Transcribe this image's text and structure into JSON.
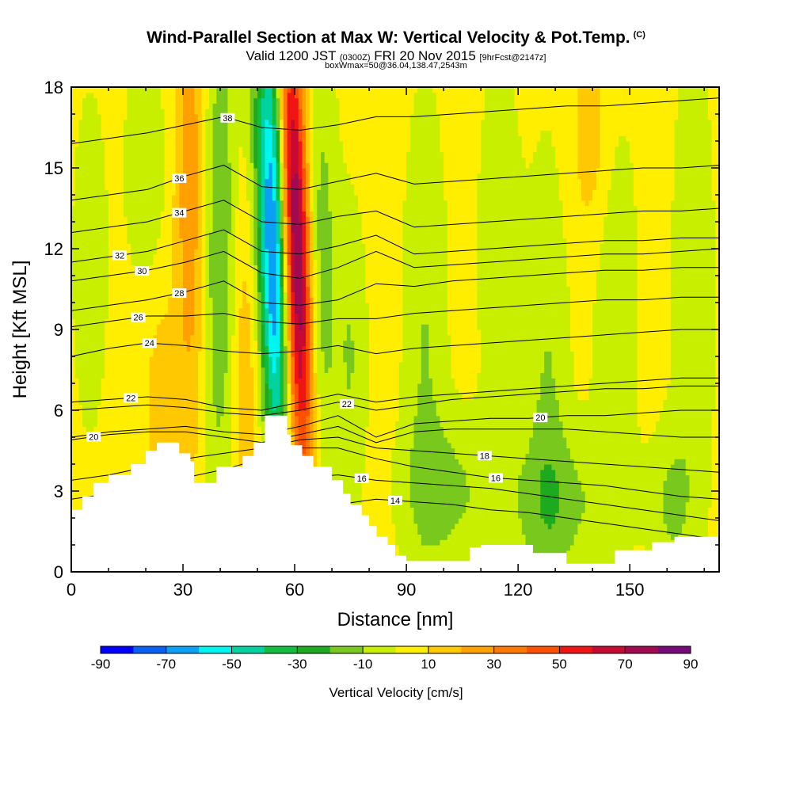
{
  "header": {
    "title": "Wind-Parallel Section at Max W: Vertical Velocity & Pot.Temp.",
    "copyright": "(C)",
    "valid_prefix": "Valid 1200 JST",
    "valid_utc": "(0300Z)",
    "valid_date": "FRI 20 Nov 2015",
    "forecast": "[9hrFcst@2147z]",
    "box_info": "boxWmax=50@36.04,138.47,2543m"
  },
  "chart_data": {
    "type": "heatmap",
    "xlabel": "Distance [nm]",
    "ylabel": "Height [Kft MSL]",
    "xlim": [
      0,
      174
    ],
    "ylim": [
      0,
      18
    ],
    "x_ticks": [
      "0",
      "30",
      "60",
      "90",
      "120",
      "150"
    ],
    "y_ticks": [
      "0",
      "3",
      "6",
      "9",
      "12",
      "15",
      "18"
    ],
    "colorbar": {
      "title": "Vertical Velocity [cm/s]",
      "tick_labels": [
        "-90",
        "-70",
        "-50",
        "-30",
        "-10",
        "10",
        "30",
        "50",
        "70",
        "90"
      ],
      "levels": [
        -90,
        -80,
        -70,
        -60,
        -50,
        -40,
        -30,
        -20,
        -10,
        0,
        10,
        20,
        30,
        40,
        50,
        60,
        70,
        80,
        90
      ],
      "colors": [
        "#0000ff",
        "#0a5ff5",
        "#0aa0f5",
        "#00f5f0",
        "#00d2a0",
        "#0fbe3c",
        "#1eaa1e",
        "#78c81e",
        "#c8ee00",
        "#ffee00",
        "#ffc800",
        "#ffa000",
        "#ff7800",
        "#ff5000",
        "#f01414",
        "#c80a32",
        "#a00a50",
        "#780a78"
      ]
    },
    "terrain": [
      [
        0,
        2.3
      ],
      [
        3,
        2.3
      ],
      [
        3,
        2.8
      ],
      [
        6,
        2.8
      ],
      [
        6,
        3.3
      ],
      [
        10,
        3.3
      ],
      [
        10,
        3.6
      ],
      [
        16,
        3.6
      ],
      [
        16,
        4.0
      ],
      [
        20,
        4.0
      ],
      [
        20,
        4.5
      ],
      [
        23,
        4.5
      ],
      [
        23,
        4.8
      ],
      [
        29,
        4.8
      ],
      [
        29,
        4.4
      ],
      [
        32,
        4.4
      ],
      [
        32,
        4.1
      ],
      [
        33,
        4.1
      ],
      [
        33,
        3.3
      ],
      [
        39,
        3.3
      ],
      [
        39,
        3.9
      ],
      [
        46,
        3.9
      ],
      [
        46,
        4.3
      ],
      [
        49,
        4.3
      ],
      [
        49,
        4.8
      ],
      [
        52,
        4.8
      ],
      [
        52,
        5.8
      ],
      [
        58,
        5.8
      ],
      [
        58,
        5.1
      ],
      [
        59,
        5.1
      ],
      [
        59,
        4.7
      ],
      [
        62,
        4.7
      ],
      [
        62,
        4.3
      ],
      [
        65,
        4.3
      ],
      [
        65,
        3.9
      ],
      [
        70,
        3.9
      ],
      [
        70,
        3.4
      ],
      [
        73,
        3.4
      ],
      [
        73,
        2.9
      ],
      [
        75,
        2.9
      ],
      [
        75,
        2.5
      ],
      [
        78,
        2.5
      ],
      [
        78,
        2.1
      ],
      [
        80,
        2.1
      ],
      [
        80,
        1.7
      ],
      [
        82,
        1.7
      ],
      [
        82,
        1.3
      ],
      [
        85,
        1.3
      ],
      [
        85,
        1.0
      ],
      [
        87,
        1.0
      ],
      [
        87,
        0.6
      ],
      [
        90,
        0.6
      ],
      [
        90,
        0.4
      ],
      [
        107,
        0.4
      ],
      [
        107,
        0.9
      ],
      [
        110,
        0.9
      ],
      [
        110,
        1.0
      ],
      [
        124,
        1.0
      ],
      [
        124,
        0.7
      ],
      [
        133,
        0.7
      ],
      [
        133,
        0.3
      ],
      [
        146,
        0.3
      ],
      [
        146,
        0.8
      ],
      [
        156,
        0.8
      ],
      [
        156,
        1.1
      ],
      [
        162,
        1.1
      ],
      [
        162,
        1.3
      ],
      [
        174,
        1.3
      ]
    ],
    "isentropes": [
      {
        "label": "14",
        "label_x": 87,
        "y": [
          0.8,
          1.0,
          1.3,
          1.6,
          1.9,
          2.2,
          2.3,
          2.5,
          2.7,
          2.6,
          2.5,
          2.3,
          2.2,
          2.0,
          1.8,
          1.6,
          1.4,
          1.2
        ]
      },
      {
        "label": "16",
        "label_x": 78,
        "y": [
          1.6,
          1.8,
          2.2,
          2.6,
          2.9,
          3.2,
          3.5,
          3.6,
          3.4,
          3.3,
          3.2,
          3.1,
          2.9,
          2.7,
          2.5,
          2.3,
          2.1,
          1.9
        ]
      },
      {
        "label": "16",
        "label_x": 114,
        "y": [
          2.7,
          2.9,
          3.2,
          3.5,
          3.8,
          4.2,
          4.6,
          4.6,
          4.2,
          3.9,
          3.7,
          3.5,
          3.4,
          3.3,
          3.2,
          3.0,
          2.8,
          2.7
        ]
      },
      {
        "label": "18",
        "label_x": 111,
        "y": [
          3.4,
          3.6,
          3.9,
          4.2,
          4.4,
          4.6,
          4.9,
          5.0,
          4.6,
          4.5,
          4.4,
          4.3,
          4.2,
          4.1,
          4.0,
          3.9,
          3.8,
          3.7
        ]
      },
      {
        "label": "20",
        "label_x": 6,
        "y": [
          4.9,
          5.1,
          5.2,
          5.2,
          5.0,
          4.8,
          5.1,
          5.4,
          4.8,
          5.2,
          5.3,
          5.3,
          5.3,
          5.3,
          5.2,
          5.1,
          5.0,
          5.0
        ]
      },
      {
        "label": "20",
        "label_x": 126,
        "y": [
          5.0,
          5.2,
          5.3,
          5.4,
          5.2,
          5.1,
          5.4,
          5.8,
          5.0,
          5.5,
          5.6,
          5.7,
          5.7,
          5.8,
          5.8,
          5.9,
          6.0,
          6.0
        ]
      },
      {
        "label": "22",
        "label_x": 16,
        "y": [
          6.3,
          6.4,
          6.5,
          6.4,
          6.1,
          6.0,
          6.3,
          6.6,
          6.3,
          6.5,
          6.6,
          6.7,
          6.8,
          6.9,
          7.0,
          7.1,
          7.2,
          7.2
        ]
      },
      {
        "label": "22",
        "label_x": 74,
        "y": [
          6.0,
          6.1,
          6.2,
          6.1,
          5.9,
          5.8,
          6.0,
          6.3,
          6.0,
          6.2,
          6.4,
          6.5,
          6.6,
          6.7,
          6.8,
          6.8,
          6.9,
          6.9
        ]
      },
      {
        "label": "24",
        "label_x": 21,
        "y": [
          8.0,
          8.3,
          8.5,
          8.4,
          8.2,
          8.1,
          8.2,
          8.4,
          8.1,
          8.3,
          8.4,
          8.5,
          8.6,
          8.7,
          8.8,
          8.9,
          9.0,
          9.0
        ]
      },
      {
        "label": "26",
        "label_x": 18,
        "y": [
          9.1,
          9.3,
          9.5,
          9.5,
          9.6,
          9.3,
          9.2,
          9.4,
          9.4,
          9.6,
          9.7,
          9.8,
          9.9,
          10.0,
          10.1,
          10.1,
          10.2,
          10.2
        ]
      },
      {
        "label": "28",
        "label_x": 29,
        "y": [
          9.7,
          9.9,
          10.1,
          10.4,
          10.8,
          10.0,
          9.9,
          10.1,
          10.7,
          10.6,
          10.8,
          10.9,
          11.0,
          11.1,
          11.2,
          11.2,
          11.3,
          11.3
        ]
      },
      {
        "label": "30",
        "label_x": 19,
        "y": [
          10.8,
          11.0,
          11.2,
          11.5,
          11.9,
          11.1,
          10.9,
          11.3,
          11.9,
          11.3,
          11.4,
          11.5,
          11.6,
          11.7,
          11.8,
          11.8,
          11.9,
          12.0
        ]
      },
      {
        "label": "32",
        "label_x": 13,
        "y": [
          11.5,
          11.7,
          11.9,
          12.3,
          12.7,
          11.9,
          11.8,
          12.1,
          12.5,
          11.8,
          11.9,
          12.0,
          12.1,
          12.2,
          12.3,
          12.3,
          12.4,
          12.4
        ]
      },
      {
        "label": "34",
        "label_x": 29,
        "y": [
          12.6,
          12.8,
          13.0,
          13.4,
          13.8,
          13.0,
          12.9,
          13.2,
          13.4,
          12.8,
          12.9,
          13.0,
          13.1,
          13.2,
          13.3,
          13.4,
          13.4,
          13.5
        ]
      },
      {
        "label": "36",
        "label_x": 29,
        "y": [
          13.8,
          14.0,
          14.2,
          14.7,
          15.1,
          14.3,
          14.2,
          14.5,
          14.8,
          14.4,
          14.5,
          14.6,
          14.7,
          14.8,
          14.9,
          15.0,
          15.0,
          15.1
        ]
      },
      {
        "label": "38",
        "label_x": 42,
        "y": [
          15.9,
          16.1,
          16.3,
          16.6,
          16.9,
          16.5,
          16.4,
          16.6,
          16.9,
          16.9,
          17.0,
          17.1,
          17.2,
          17.3,
          17.3,
          17.4,
          17.5,
          17.6
        ]
      }
    ]
  }
}
